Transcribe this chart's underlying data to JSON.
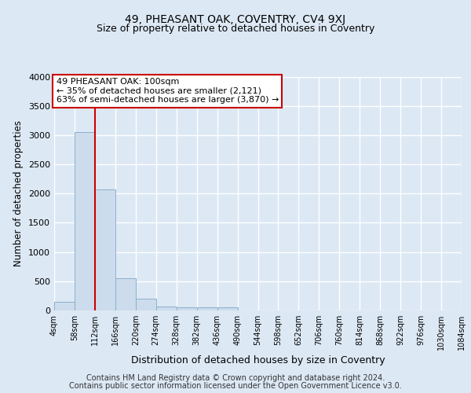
{
  "title_line1": "49, PHEASANT OAK, COVENTRY, CV4 9XJ",
  "title_line2": "Size of property relative to detached houses in Coventry",
  "xlabel": "Distribution of detached houses by size in Coventry",
  "ylabel": "Number of detached properties",
  "bin_edges": [
    4,
    58,
    112,
    166,
    220,
    274,
    328,
    382,
    436,
    490,
    544,
    598,
    652,
    706,
    760,
    814,
    868,
    922,
    976,
    1030,
    1084
  ],
  "bar_heights": [
    150,
    3050,
    2070,
    550,
    200,
    65,
    50,
    50,
    50,
    0,
    0,
    0,
    0,
    0,
    0,
    0,
    0,
    0,
    0,
    0
  ],
  "bar_color": "#ccdcec",
  "bar_edgecolor": "#8ab0cc",
  "vline_x": 112,
  "vline_color": "#cc0000",
  "ylim": [
    0,
    4000
  ],
  "yticks": [
    0,
    500,
    1000,
    1500,
    2000,
    2500,
    3000,
    3500,
    4000
  ],
  "annotation_text": "49 PHEASANT OAK: 100sqm\n← 35% of detached houses are smaller (2,121)\n63% of semi-detached houses are larger (3,870) →",
  "annotation_box_color": "#ffffff",
  "annotation_box_edgecolor": "#cc0000",
  "footer_line1": "Contains HM Land Registry data © Crown copyright and database right 2024.",
  "footer_line2": "Contains public sector information licensed under the Open Government Licence v3.0.",
  "bg_color": "#dce8f4",
  "plot_bg_color": "#dce8f4",
  "grid_color": "#ffffff",
  "title_fontsize": 10,
  "subtitle_fontsize": 9,
  "footer_fontsize": 7,
  "tick_label_fontsize": 7,
  "annotation_fontsize": 8
}
